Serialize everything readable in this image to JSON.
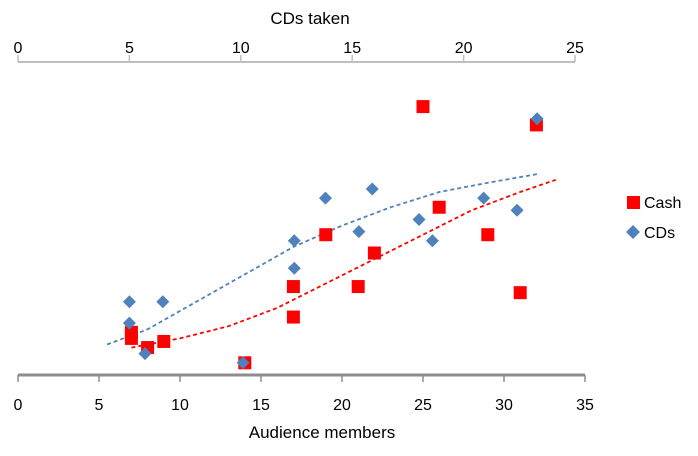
{
  "chart_data": {
    "type": "scatter",
    "title": "",
    "grid": false,
    "legend_position": "right",
    "x_axis_bottom": {
      "label": "Audience members",
      "range": [
        0,
        35
      ],
      "ticks": [
        "0",
        "5",
        "10",
        "15",
        "20",
        "25",
        "30",
        "35"
      ]
    },
    "x_axis_top": {
      "label": "CDs taken",
      "range": [
        0,
        25
      ],
      "ticks": [
        "0",
        "5",
        "10",
        "15",
        "20",
        "25"
      ]
    },
    "y_axis": {
      "visible": false,
      "range": [
        0,
        1
      ]
    },
    "series": [
      {
        "name": "Cash",
        "marker": "square",
        "color": "#ff0000",
        "x_axis": "bottom",
        "points": [
          {
            "x": 7,
            "y": 0.14
          },
          {
            "x": 7,
            "y": 0.12
          },
          {
            "x": 8,
            "y": 0.09
          },
          {
            "x": 9,
            "y": 0.11
          },
          {
            "x": 14,
            "y": 0.04
          },
          {
            "x": 17,
            "y": 0.19
          },
          {
            "x": 17,
            "y": 0.29
          },
          {
            "x": 19,
            "y": 0.46
          },
          {
            "x": 21,
            "y": 0.29
          },
          {
            "x": 22,
            "y": 0.4
          },
          {
            "x": 25,
            "y": 0.88
          },
          {
            "x": 26,
            "y": 0.55
          },
          {
            "x": 29,
            "y": 0.46
          },
          {
            "x": 31,
            "y": 0.27
          },
          {
            "x": 32,
            "y": 0.82
          }
        ]
      },
      {
        "name": "CDs",
        "marker": "diamond",
        "color": "#4f81bd",
        "x_axis": "top",
        "points": [
          {
            "x": 5,
            "y": 0.24
          },
          {
            "x": 5,
            "y": 0.17
          },
          {
            "x": 5.7,
            "y": 0.07
          },
          {
            "x": 6.5,
            "y": 0.24
          },
          {
            "x": 10.1,
            "y": 0.04
          },
          {
            "x": 12.4,
            "y": 0.44
          },
          {
            "x": 12.4,
            "y": 0.35
          },
          {
            "x": 13.8,
            "y": 0.58
          },
          {
            "x": 15.3,
            "y": 0.47
          },
          {
            "x": 15.9,
            "y": 0.61
          },
          {
            "x": 18,
            "y": 0.51
          },
          {
            "x": 18.6,
            "y": 0.44
          },
          {
            "x": 20.9,
            "y": 0.58
          },
          {
            "x": 22.4,
            "y": 0.54
          },
          {
            "x": 23.3,
            "y": 0.84
          }
        ]
      }
    ],
    "trendlines": [
      {
        "series": "CDs",
        "color": "#4f81bd",
        "style": "dashed",
        "x_axis": "bottom",
        "points": [
          {
            "x": 5.5,
            "y": 0.1
          },
          {
            "x": 8,
            "y": 0.15
          },
          {
            "x": 11,
            "y": 0.24
          },
          {
            "x": 14,
            "y": 0.33
          },
          {
            "x": 17,
            "y": 0.42
          },
          {
            "x": 20,
            "y": 0.49
          },
          {
            "x": 23,
            "y": 0.55
          },
          {
            "x": 26,
            "y": 0.6
          },
          {
            "x": 29,
            "y": 0.63
          },
          {
            "x": 32.2,
            "y": 0.66
          }
        ]
      },
      {
        "series": "Cash",
        "color": "#ff0000",
        "style": "dashed",
        "x_axis": "bottom",
        "points": [
          {
            "x": 7,
            "y": 0.09
          },
          {
            "x": 10,
            "y": 0.12
          },
          {
            "x": 13,
            "y": 0.16
          },
          {
            "x": 16,
            "y": 0.22
          },
          {
            "x": 19,
            "y": 0.3
          },
          {
            "x": 22,
            "y": 0.38
          },
          {
            "x": 25,
            "y": 0.46
          },
          {
            "x": 28,
            "y": 0.54
          },
          {
            "x": 31,
            "y": 0.6
          },
          {
            "x": 33.2,
            "y": 0.64
          }
        ]
      }
    ]
  },
  "legend": {
    "items": [
      {
        "label": "Cash",
        "marker": "square",
        "color": "#ff0000"
      },
      {
        "label": "CDs",
        "marker": "diamond",
        "color": "#4f81bd"
      }
    ]
  }
}
